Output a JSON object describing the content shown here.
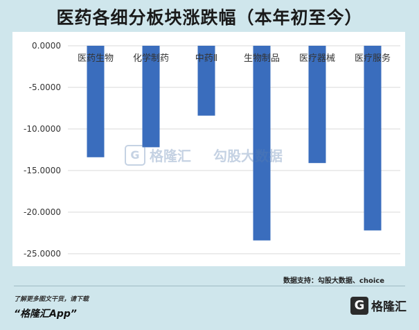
{
  "title": "医药各细分板块涨跌幅（本年初至今）",
  "source": "数据支持：勾股大数据、choice",
  "footer": {
    "note": "了解更多图文干货，请下载",
    "app": "“格隆汇App”",
    "brand": "格隆汇"
  },
  "watermark": {
    "brand": "格隆汇",
    "secondary": "勾股大数据"
  },
  "colors": {
    "bar": "#3a6dbd",
    "grid": "#d9d9d9",
    "background": "#cfe6ec",
    "plot_background": "#ffffff"
  },
  "chart_data": {
    "type": "bar",
    "title": "医药各细分板块涨跌幅（本年初至今）",
    "xlabel": "",
    "ylabel": "",
    "categories": [
      "医药生物",
      "化学制药",
      "中药Ⅱ",
      "生物制品",
      "医疗器械",
      "医疗服务"
    ],
    "values": [
      -13.4,
      -12.2,
      -8.4,
      -23.4,
      -14.1,
      -22.2
    ],
    "ylim": [
      -25,
      0
    ],
    "yticks": [
      0,
      -5,
      -10,
      -15,
      -20,
      -25
    ],
    "ytick_labels": [
      "0.0000",
      "-5.0000",
      "-10.0000",
      "-15.0000",
      "-20.0000",
      "-25.0000"
    ],
    "grid": true,
    "legend": "none"
  }
}
